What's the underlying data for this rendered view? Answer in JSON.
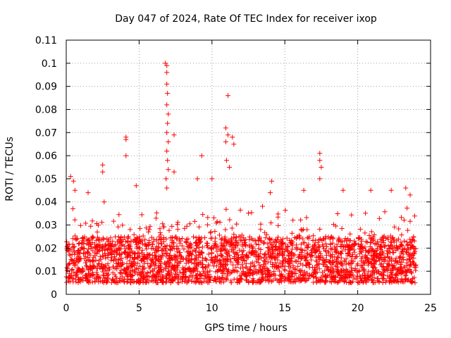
{
  "chart_data": {
    "type": "scatter",
    "title": "Day 047 of 2024, Rate Of TEC Index for receiver ixop",
    "xlabel": "GPS time / hours",
    "ylabel": "ROTI / TECUs",
    "xlim": [
      0,
      25
    ],
    "ylim": [
      0,
      0.11
    ],
    "grid": true,
    "marker": "+",
    "color": "#ff0000",
    "x_ticks": [
      {
        "value": 0,
        "label": "0"
      },
      {
        "value": 5,
        "label": "5"
      },
      {
        "value": 10,
        "label": "10"
      },
      {
        "value": 15,
        "label": "15"
      },
      {
        "value": 20,
        "label": "20"
      },
      {
        "value": 25,
        "label": "25"
      }
    ],
    "y_ticks": [
      {
        "value": 0,
        "label": "0"
      },
      {
        "value": 0.01,
        "label": "0.01"
      },
      {
        "value": 0.02,
        "label": "0.02"
      },
      {
        "value": 0.03,
        "label": "0.03"
      },
      {
        "value": 0.04,
        "label": "0.04"
      },
      {
        "value": 0.05,
        "label": "0.05"
      },
      {
        "value": 0.06,
        "label": "0.06"
      },
      {
        "value": 0.07,
        "label": "0.07"
      },
      {
        "value": 0.08,
        "label": "0.08"
      },
      {
        "value": 0.09,
        "label": "0.09"
      },
      {
        "value": 0.1,
        "label": "0.1"
      },
      {
        "value": 0.11,
        "label": "0.11"
      }
    ],
    "bulk_band": {
      "x_range": [
        0,
        24
      ],
      "y_range": [
        0.005,
        0.025
      ]
    },
    "notable_points": [
      {
        "x": 0.3,
        "y": 0.051
      },
      {
        "x": 0.5,
        "y": 0.049
      },
      {
        "x": 0.6,
        "y": 0.045
      },
      {
        "x": 1.5,
        "y": 0.044
      },
      {
        "x": 2.5,
        "y": 0.056
      },
      {
        "x": 2.5,
        "y": 0.053
      },
      {
        "x": 2.6,
        "y": 0.04
      },
      {
        "x": 4.1,
        "y": 0.068
      },
      {
        "x": 4.1,
        "y": 0.067
      },
      {
        "x": 4.1,
        "y": 0.06
      },
      {
        "x": 4.8,
        "y": 0.047
      },
      {
        "x": 6.8,
        "y": 0.1
      },
      {
        "x": 6.9,
        "y": 0.099
      },
      {
        "x": 6.9,
        "y": 0.096
      },
      {
        "x": 6.9,
        "y": 0.091
      },
      {
        "x": 6.95,
        "y": 0.087
      },
      {
        "x": 6.9,
        "y": 0.082
      },
      {
        "x": 7.0,
        "y": 0.078
      },
      {
        "x": 6.95,
        "y": 0.074
      },
      {
        "x": 6.9,
        "y": 0.07
      },
      {
        "x": 7.0,
        "y": 0.066
      },
      {
        "x": 6.9,
        "y": 0.062
      },
      {
        "x": 6.95,
        "y": 0.058
      },
      {
        "x": 7.0,
        "y": 0.054
      },
      {
        "x": 6.85,
        "y": 0.05
      },
      {
        "x": 6.9,
        "y": 0.046
      },
      {
        "x": 7.4,
        "y": 0.069
      },
      {
        "x": 7.4,
        "y": 0.053
      },
      {
        "x": 9.3,
        "y": 0.06
      },
      {
        "x": 9.0,
        "y": 0.05
      },
      {
        "x": 10.0,
        "y": 0.05
      },
      {
        "x": 11.1,
        "y": 0.086
      },
      {
        "x": 10.95,
        "y": 0.072
      },
      {
        "x": 11.1,
        "y": 0.069
      },
      {
        "x": 10.95,
        "y": 0.066
      },
      {
        "x": 11.4,
        "y": 0.068
      },
      {
        "x": 11.5,
        "y": 0.065
      },
      {
        "x": 11.0,
        "y": 0.058
      },
      {
        "x": 11.2,
        "y": 0.055
      },
      {
        "x": 14.1,
        "y": 0.049
      },
      {
        "x": 14.0,
        "y": 0.044
      },
      {
        "x": 16.3,
        "y": 0.045
      },
      {
        "x": 17.4,
        "y": 0.061
      },
      {
        "x": 17.4,
        "y": 0.058
      },
      {
        "x": 17.5,
        "y": 0.055
      },
      {
        "x": 17.4,
        "y": 0.05
      },
      {
        "x": 19.0,
        "y": 0.045
      },
      {
        "x": 20.9,
        "y": 0.045
      },
      {
        "x": 22.3,
        "y": 0.045
      },
      {
        "x": 23.3,
        "y": 0.046
      },
      {
        "x": 23.6,
        "y": 0.043
      }
    ]
  }
}
